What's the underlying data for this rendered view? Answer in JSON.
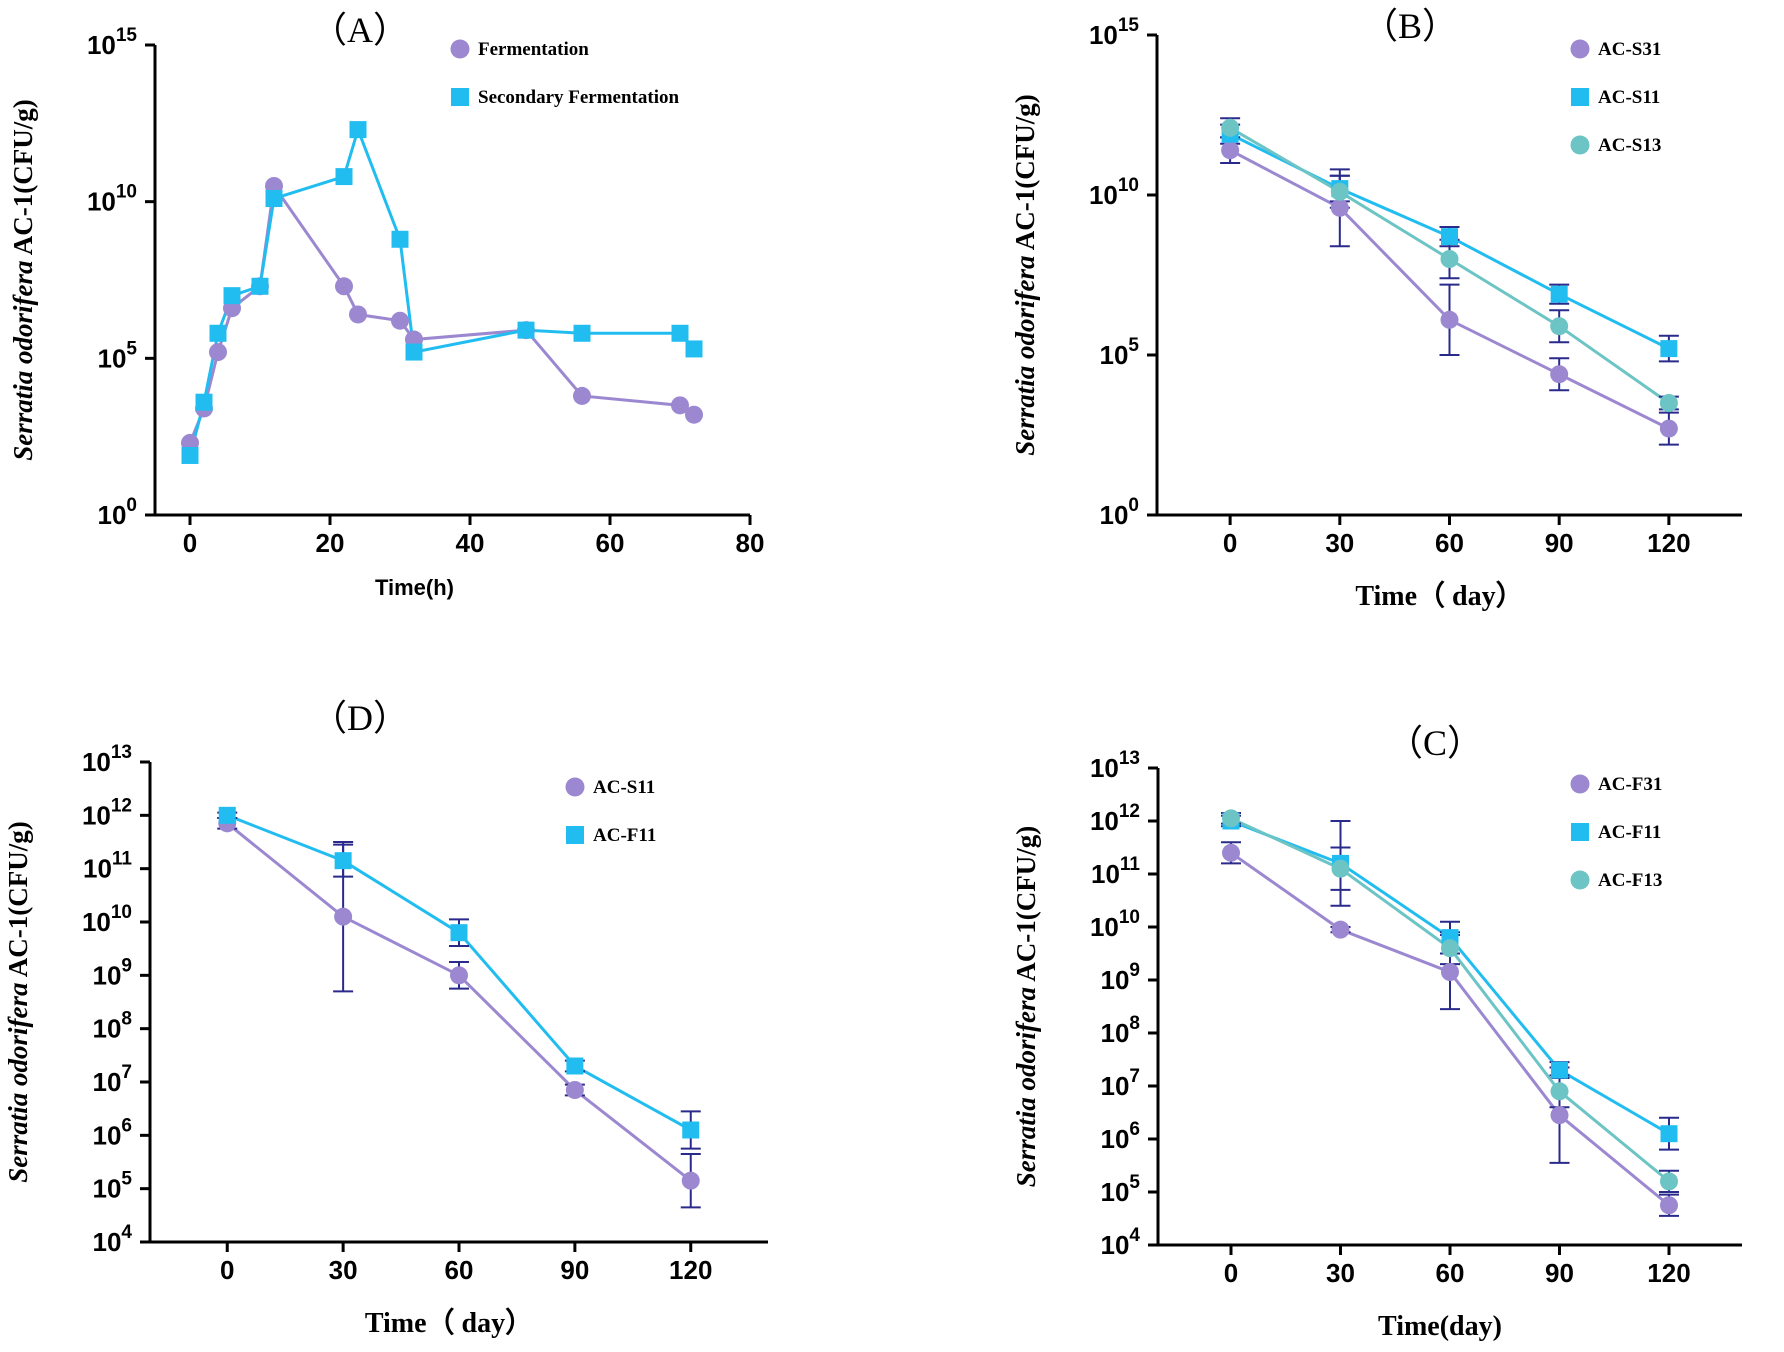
{
  "colors": {
    "purple": "#9b88d0",
    "blue": "#22bdf0",
    "teal": "#6cc4c4",
    "errbar": "#2a2a8c"
  },
  "chart_data": [
    {
      "id": "A",
      "type": "line",
      "title": "（A）",
      "xlabel": "Time(h)",
      "ylabel_italic": "Serratia odorifera",
      "ylabel_rest": " AC-1(CFU/g)",
      "xlim": [
        -5,
        80
      ],
      "ylim_log10": [
        0,
        15
      ],
      "xticks": [
        0,
        20,
        40,
        60,
        80
      ],
      "yticks_log10": [
        0,
        5,
        10,
        15
      ],
      "series": [
        {
          "name": "Fermentation",
          "marker": "circle",
          "color": "purple",
          "x": [
            0,
            2,
            4,
            6,
            10,
            12,
            22,
            24,
            30,
            32,
            48,
            56,
            70,
            72
          ],
          "y_log10": [
            2.3,
            3.4,
            5.2,
            6.6,
            7.3,
            10.5,
            7.3,
            6.4,
            6.2,
            5.6,
            5.9,
            3.8,
            3.5,
            3.2
          ],
          "err_log10": []
        },
        {
          "name": "Secondary Fermentation",
          "marker": "square",
          "color": "blue",
          "x": [
            0,
            2,
            4,
            6,
            10,
            12,
            22,
            24,
            30,
            32,
            48,
            56,
            70,
            72
          ],
          "y_log10": [
            1.9,
            3.6,
            5.8,
            7.0,
            7.3,
            10.1,
            10.8,
            12.3,
            8.8,
            5.2,
            5.9,
            5.8,
            5.8,
            5.3
          ],
          "err_log10": []
        }
      ]
    },
    {
      "id": "B",
      "type": "line",
      "title": "（B）",
      "xlabel": "Time（ day）",
      "ylabel_italic": "Serratia odorifera",
      "ylabel_rest": " AC-1(CFU/g)",
      "xlim": [
        -20,
        140
      ],
      "ylim_log10": [
        0,
        15
      ],
      "xticks": [
        0,
        30,
        60,
        90,
        120
      ],
      "yticks_log10": [
        0,
        5,
        10,
        15
      ],
      "series": [
        {
          "name": "AC-S31",
          "marker": "circle",
          "color": "purple",
          "x": [
            0,
            30,
            60,
            90,
            120
          ],
          "y_log10": [
            11.4,
            9.6,
            6.1,
            4.4,
            2.7
          ],
          "err_log10": [
            0.4,
            1.2,
            1.1,
            0.5,
            0.5
          ]
        },
        {
          "name": "AC-S11",
          "marker": "square",
          "color": "blue",
          "x": [
            0,
            30,
            60,
            90,
            120
          ],
          "y_log10": [
            11.9,
            10.2,
            8.7,
            6.9,
            5.2
          ],
          "err_log10": [
            0.3,
            0.4,
            0.3,
            0.3,
            0.4
          ]
        },
        {
          "name": "AC-S13",
          "marker": "circle",
          "color": "teal",
          "x": [
            0,
            30,
            60,
            90,
            120
          ],
          "y_log10": [
            12.1,
            10.1,
            8.0,
            5.9,
            3.5
          ],
          "err_log10": [
            0.3,
            0.5,
            0.6,
            0.5,
            0.2
          ]
        }
      ]
    },
    {
      "id": "D",
      "type": "line",
      "title": "（D）",
      "xlabel": "Time（ day）",
      "ylabel_italic": "Serratia odorifera",
      "ylabel_rest": " AC-1(CFU/g)",
      "xlim": [
        -20,
        140
      ],
      "ylim_log10": [
        4,
        13
      ],
      "xticks": [
        0,
        30,
        60,
        90,
        120
      ],
      "yticks_log10": [
        4,
        5,
        6,
        7,
        8,
        9,
        10,
        11,
        12,
        13
      ],
      "series": [
        {
          "name": "AC-S11",
          "marker": "circle",
          "color": "purple",
          "x": [
            0,
            30,
            60,
            90,
            120
          ],
          "y_log10": [
            11.85,
            10.1,
            9.0,
            6.85,
            5.15
          ],
          "err_log10": [
            0.1,
            1.4,
            0.25,
            0.1,
            0.5
          ]
        },
        {
          "name": "AC-F11",
          "marker": "square",
          "color": "blue",
          "x": [
            0,
            30,
            60,
            90,
            120
          ],
          "y_log10": [
            12.0,
            11.15,
            9.8,
            7.3,
            6.1
          ],
          "err_log10": [
            0.05,
            0.3,
            0.25,
            0.1,
            0.35
          ]
        }
      ]
    },
    {
      "id": "C",
      "type": "line",
      "title": "（C）",
      "xlabel": "Time(day)",
      "ylabel_italic": "Serratia odorifera",
      "ylabel_rest": " AC-1(CFU/g)",
      "xlim": [
        -20,
        140
      ],
      "ylim_log10": [
        4,
        13
      ],
      "xticks": [
        0,
        30,
        60,
        90,
        120
      ],
      "yticks_log10": [
        4,
        5,
        6,
        7,
        8,
        9,
        10,
        11,
        12,
        13
      ],
      "series": [
        {
          "name": "AC-F31",
          "marker": "circle",
          "color": "purple",
          "x": [
            0,
            30,
            60,
            90,
            120
          ],
          "y_log10": [
            11.4,
            9.95,
            9.15,
            6.45,
            4.75
          ],
          "err_log10": [
            0.2,
            0.05,
            0.7,
            0.9,
            0.2
          ]
        },
        {
          "name": "AC-F11",
          "marker": "square",
          "color": "blue",
          "x": [
            0,
            30,
            60,
            90,
            120
          ],
          "y_log10": [
            12.0,
            11.2,
            9.8,
            7.3,
            6.1
          ],
          "err_log10": [
            0.1,
            0.8,
            0.3,
            0.15,
            0.3
          ]
        },
        {
          "name": "AC-F13",
          "marker": "circle",
          "color": "teal",
          "x": [
            0,
            30,
            60,
            90,
            120
          ],
          "y_log10": [
            12.05,
            11.1,
            9.6,
            6.9,
            5.2
          ],
          "err_log10": [
            0.1,
            0.4,
            0.3,
            0.3,
            0.2
          ]
        }
      ]
    }
  ]
}
